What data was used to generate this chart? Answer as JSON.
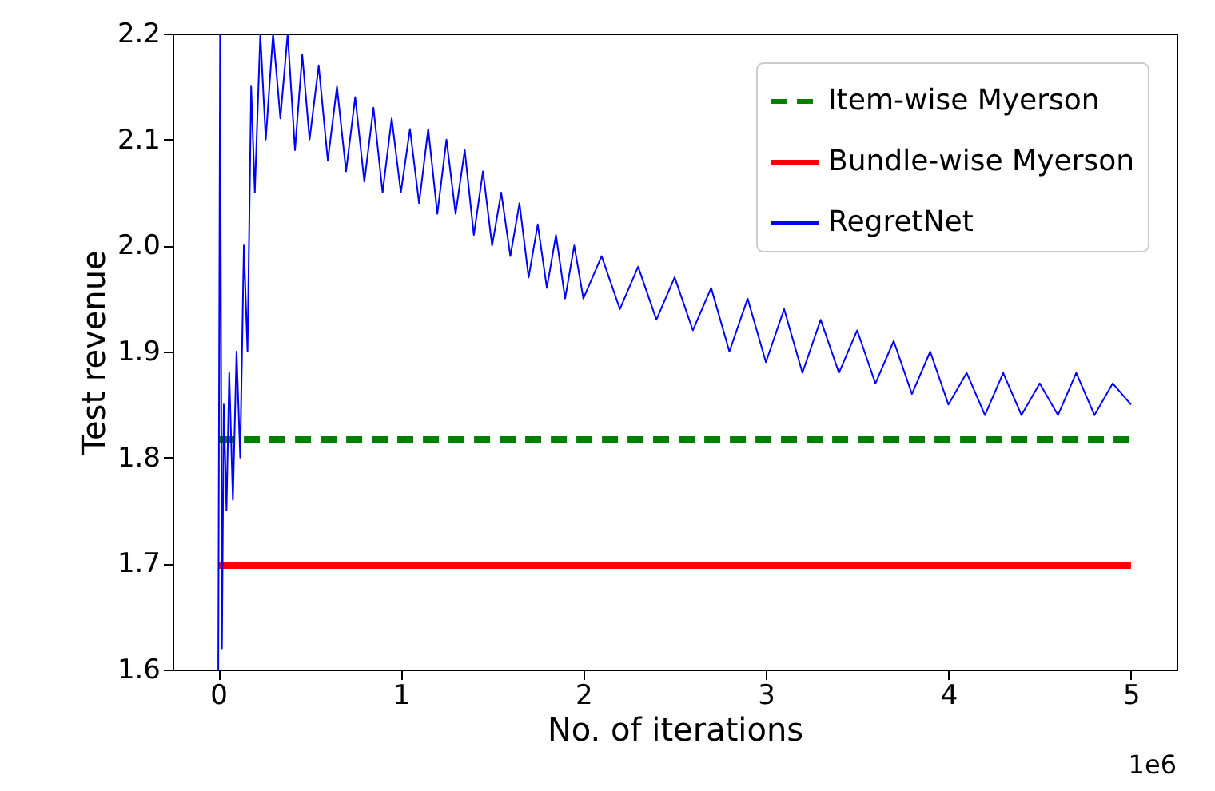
{
  "chart_data": {
    "type": "line",
    "xlabel": "No. of iterations",
    "ylabel": "Test revenue",
    "xlim": [
      -0.25,
      5.25
    ],
    "ylim": [
      1.6,
      2.2
    ],
    "xticks": [
      0,
      1,
      2,
      3,
      4,
      5
    ],
    "yticks": [
      1.6,
      1.7,
      1.8,
      1.9,
      {
        "value": 2.0,
        "label": "2.0"
      },
      2.1,
      2.2
    ],
    "annotations": [
      "1e6"
    ],
    "grid": false,
    "legend": "top right",
    "marker": "none",
    "series": [
      {
        "name": "Item-wise Myerson",
        "color": "#008000",
        "line_style": "dashed",
        "x": [
          0,
          5
        ],
        "values": [
          1.817,
          1.817
        ]
      },
      {
        "name": "Bundle-wise Myerson",
        "color": "#ff0000",
        "line_style": "solid",
        "x": [
          0,
          5
        ],
        "values": [
          1.698,
          1.698
        ]
      },
      {
        "name": "RegretNet",
        "color": "#0000ff",
        "line_style": "solid",
        "x": [
          0,
          0.01,
          0.02,
          0.03,
          0.045,
          0.06,
          0.08,
          0.1,
          0.12,
          0.14,
          0.16,
          0.18,
          0.2,
          0.23,
          0.26,
          0.3,
          0.34,
          0.38,
          0.42,
          0.46,
          0.5,
          0.55,
          0.6,
          0.65,
          0.7,
          0.75,
          0.8,
          0.85,
          0.9,
          0.95,
          1.0,
          1.05,
          1.1,
          1.15,
          1.2,
          1.25,
          1.3,
          1.35,
          1.4,
          1.45,
          1.5,
          1.55,
          1.6,
          1.65,
          1.7,
          1.75,
          1.8,
          1.85,
          1.9,
          1.95,
          2.0,
          2.1,
          2.2,
          2.3,
          2.4,
          2.5,
          2.6,
          2.7,
          2.8,
          2.9,
          3.0,
          3.1,
          3.2,
          3.3,
          3.4,
          3.5,
          3.6,
          3.7,
          3.8,
          3.9,
          4.0,
          4.1,
          4.2,
          4.3,
          4.4,
          4.5,
          4.6,
          4.7,
          4.8,
          4.9,
          5.0
        ],
        "values": [
          1.6,
          2.2,
          1.62,
          1.85,
          1.75,
          1.88,
          1.76,
          1.9,
          1.8,
          2.0,
          1.9,
          2.15,
          2.05,
          2.2,
          2.1,
          2.2,
          2.12,
          2.2,
          2.09,
          2.18,
          2.1,
          2.17,
          2.08,
          2.15,
          2.07,
          2.14,
          2.06,
          2.13,
          2.05,
          2.12,
          2.05,
          2.11,
          2.04,
          2.11,
          2.03,
          2.1,
          2.03,
          2.09,
          2.01,
          2.07,
          2.0,
          2.05,
          1.99,
          2.04,
          1.97,
          2.02,
          1.96,
          2.01,
          1.95,
          2.0,
          1.95,
          1.99,
          1.94,
          1.98,
          1.93,
          1.97,
          1.92,
          1.96,
          1.9,
          1.95,
          1.89,
          1.94,
          1.88,
          1.93,
          1.88,
          1.92,
          1.87,
          1.91,
          1.86,
          1.9,
          1.85,
          1.88,
          1.84,
          1.88,
          1.84,
          1.87,
          1.84,
          1.88,
          1.84,
          1.87,
          1.85
        ]
      }
    ]
  }
}
